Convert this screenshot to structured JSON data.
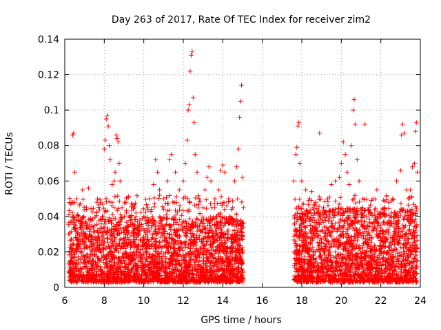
{
  "chart_data": {
    "type": "scatter",
    "title": "Day 263 of 2017, Rate Of TEC Index for receiver zim2",
    "xlabel": "GPS time / hours",
    "ylabel": "ROTI / TECUs",
    "xlim": [
      6,
      24
    ],
    "ylim": [
      0,
      0.14
    ],
    "x_ticks": [
      6,
      8,
      10,
      12,
      14,
      16,
      18,
      20,
      22,
      24
    ],
    "x_tick_labels": [
      "6",
      "8",
      "10",
      "12",
      "14",
      "16",
      "18",
      "20",
      "22",
      "24"
    ],
    "y_ticks": [
      0,
      0.02,
      0.04,
      0.06,
      0.08,
      0.1,
      0.12,
      0.14
    ],
    "y_tick_labels": [
      "0",
      "0.02",
      "0.04",
      "0.06",
      "0.08",
      "0.1",
      "0.12",
      "0.14"
    ],
    "grid": true,
    "marker": "plus",
    "color": "#ff0000",
    "series": [
      {
        "name": "ROTI",
        "points": [
          [
            6.2,
            0.03
          ],
          [
            6.3,
            0.047
          ],
          [
            6.35,
            0.048
          ],
          [
            6.4,
            0.086
          ],
          [
            6.45,
            0.087
          ],
          [
            6.5,
            0.065
          ],
          [
            6.6,
            0.05
          ],
          [
            6.7,
            0.04
          ],
          [
            6.9,
            0.055
          ],
          [
            7.0,
            0.03
          ],
          [
            7.1,
            0.045
          ],
          [
            7.2,
            0.056
          ],
          [
            7.3,
            0.038
          ],
          [
            7.5,
            0.035
          ],
          [
            7.6,
            0.042
          ],
          [
            7.8,
            0.048
          ],
          [
            7.9,
            0.04
          ],
          [
            8.0,
            0.078
          ],
          [
            8.05,
            0.083
          ],
          [
            8.1,
            0.095
          ],
          [
            8.15,
            0.097
          ],
          [
            8.2,
            0.091
          ],
          [
            8.25,
            0.08
          ],
          [
            8.3,
            0.072
          ],
          [
            8.4,
            0.058
          ],
          [
            8.5,
            0.06
          ],
          [
            8.55,
            0.065
          ],
          [
            8.6,
            0.086
          ],
          [
            8.65,
            0.084
          ],
          [
            8.7,
            0.082
          ],
          [
            8.75,
            0.07
          ],
          [
            8.8,
            0.06
          ],
          [
            8.9,
            0.045
          ],
          [
            9.1,
            0.048
          ],
          [
            9.3,
            0.04
          ],
          [
            9.5,
            0.045
          ],
          [
            9.8,
            0.038
          ],
          [
            10.0,
            0.04
          ],
          [
            10.2,
            0.045
          ],
          [
            10.3,
            0.05
          ],
          [
            10.5,
            0.058
          ],
          [
            10.6,
            0.072
          ],
          [
            10.7,
            0.065
          ],
          [
            10.8,
            0.055
          ],
          [
            11.0,
            0.05
          ],
          [
            11.2,
            0.06
          ],
          [
            11.3,
            0.072
          ],
          [
            11.4,
            0.075
          ],
          [
            11.6,
            0.065
          ],
          [
            11.8,
            0.055
          ],
          [
            12.0,
            0.06
          ],
          [
            12.1,
            0.07
          ],
          [
            12.2,
            0.083
          ],
          [
            12.25,
            0.1
          ],
          [
            12.3,
            0.103
          ],
          [
            12.35,
            0.122
          ],
          [
            12.4,
            0.131
          ],
          [
            12.45,
            0.133
          ],
          [
            12.5,
            0.107
          ],
          [
            12.55,
            0.093
          ],
          [
            12.6,
            0.075
          ],
          [
            12.7,
            0.065
          ],
          [
            12.8,
            0.05
          ],
          [
            13.0,
            0.045
          ],
          [
            13.1,
            0.055
          ],
          [
            13.2,
            0.062
          ],
          [
            13.3,
            0.068
          ],
          [
            13.4,
            0.06
          ],
          [
            13.6,
            0.05
          ],
          [
            13.8,
            0.055
          ],
          [
            13.9,
            0.066
          ],
          [
            14.0,
            0.069
          ],
          [
            14.1,
            0.065
          ],
          [
            14.3,
            0.05
          ],
          [
            14.5,
            0.045
          ],
          [
            14.6,
            0.06
          ],
          [
            14.7,
            0.068
          ],
          [
            14.8,
            0.078
          ],
          [
            14.85,
            0.096
          ],
          [
            14.9,
            0.105
          ],
          [
            14.95,
            0.114
          ],
          [
            15.0,
            0.062
          ],
          [
            15.05,
            0.045
          ],
          [
            17.6,
            0.06
          ],
          [
            17.7,
            0.075
          ],
          [
            17.75,
            0.079
          ],
          [
            17.8,
            0.091
          ],
          [
            17.85,
            0.093
          ],
          [
            17.9,
            0.07
          ],
          [
            18.0,
            0.06
          ],
          [
            18.2,
            0.055
          ],
          [
            18.4,
            0.05
          ],
          [
            18.5,
            0.054
          ],
          [
            18.7,
            0.048
          ],
          [
            18.9,
            0.087
          ],
          [
            19.1,
            0.045
          ],
          [
            19.3,
            0.05
          ],
          [
            19.5,
            0.058
          ],
          [
            19.7,
            0.06
          ],
          [
            19.9,
            0.062
          ],
          [
            20.0,
            0.07
          ],
          [
            20.1,
            0.082
          ],
          [
            20.2,
            0.075
          ],
          [
            20.3,
            0.065
          ],
          [
            20.4,
            0.058
          ],
          [
            20.5,
            0.08
          ],
          [
            20.6,
            0.1
          ],
          [
            20.65,
            0.106
          ],
          [
            20.7,
            0.092
          ],
          [
            20.8,
            0.072
          ],
          [
            20.9,
            0.06
          ],
          [
            21.1,
            0.05
          ],
          [
            21.2,
            0.092
          ],
          [
            21.4,
            0.045
          ],
          [
            21.6,
            0.05
          ],
          [
            21.8,
            0.055
          ],
          [
            22.0,
            0.04
          ],
          [
            22.2,
            0.045
          ],
          [
            22.4,
            0.048
          ],
          [
            22.6,
            0.05
          ],
          [
            22.8,
            0.06
          ],
          [
            23.0,
            0.066
          ],
          [
            23.05,
            0.086
          ],
          [
            23.1,
            0.092
          ],
          [
            23.2,
            0.087
          ],
          [
            23.3,
            0.055
          ],
          [
            23.5,
            0.055
          ],
          [
            23.6,
            0.068
          ],
          [
            23.7,
            0.07
          ],
          [
            23.75,
            0.088
          ],
          [
            23.8,
            0.093
          ],
          [
            23.85,
            0.065
          ]
        ],
        "density_bands": [
          {
            "x": [
              6.2,
              15.05
            ],
            "y_range": [
              0.003,
              0.04
            ]
          },
          {
            "x": [
              17.6,
              23.85
            ],
            "y_range": [
              0.003,
              0.045
            ]
          }
        ]
      }
    ]
  }
}
